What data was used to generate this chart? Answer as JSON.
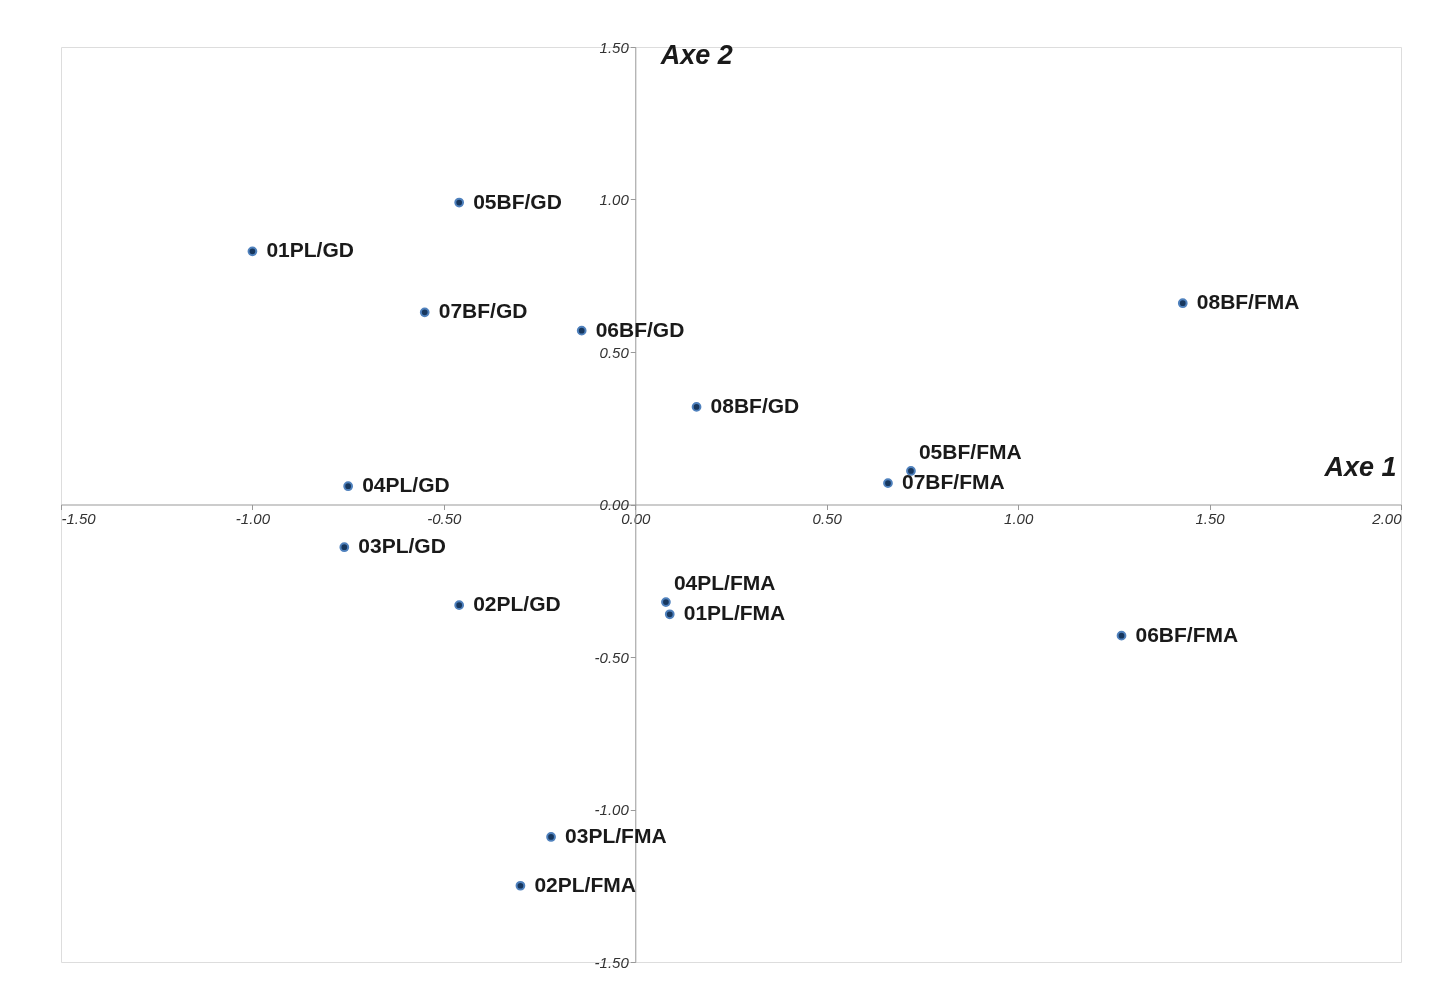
{
  "chart_data": {
    "type": "scatter",
    "xlabel": "Axe 1",
    "ylabel": "Axe 2",
    "xlim": [
      -1.5,
      2.0
    ],
    "ylim": [
      -1.5,
      1.5
    ],
    "xticks": [
      {
        "value": -1.5,
        "label": "-1.50"
      },
      {
        "value": -1.0,
        "label": "-1.00"
      },
      {
        "value": -0.5,
        "label": "-0.50"
      },
      {
        "value": 0,
        "label": "0.00"
      },
      {
        "value": 0.5,
        "label": "0.50"
      },
      {
        "value": 1.0,
        "label": "1.00"
      },
      {
        "value": 1.5,
        "label": "1.50"
      },
      {
        "value": 2.0,
        "label": "2.00"
      }
    ],
    "yticks": [
      {
        "value": -1.5,
        "label": "-1.50"
      },
      {
        "value": -1.0,
        "label": "-1.00"
      },
      {
        "value": -0.5,
        "label": "-0.50"
      },
      {
        "value": 0,
        "label": "0.00"
      },
      {
        "value": 0.5,
        "label": "0.50"
      },
      {
        "value": 1.0,
        "label": "1.00"
      },
      {
        "value": 1.5,
        "label": "1.50"
      }
    ],
    "grid": false,
    "marker": "circle",
    "series": [
      {
        "color": "#17375e",
        "x": [
          -0.46,
          -1.0,
          -0.55,
          -0.14,
          0.16,
          -0.75,
          -0.76,
          -0.46,
          1.43,
          0.72,
          0.66,
          0.08,
          0.09,
          1.27,
          -0.22,
          -0.3
        ],
        "values": [
          0.99,
          0.83,
          0.63,
          0.57,
          0.32,
          0.06,
          -0.14,
          -0.33,
          0.66,
          0.11,
          0.07,
          -0.32,
          -0.36,
          -0.43,
          -1.09,
          -1.25
        ]
      }
    ],
    "annotations": [
      {
        "text": "05BF/GD",
        "x": -0.46,
        "y": 0.99
      },
      {
        "text": "01PL/GD",
        "x": -1.0,
        "y": 0.83
      },
      {
        "text": "07BF/GD",
        "x": -0.55,
        "y": 0.63
      },
      {
        "text": "06BF/GD",
        "x": -0.14,
        "y": 0.57
      },
      {
        "text": "08BF/GD",
        "x": 0.16,
        "y": 0.32
      },
      {
        "text": "04PL/GD",
        "x": -0.75,
        "y": 0.06
      },
      {
        "text": "03PL/GD",
        "x": -0.76,
        "y": -0.14
      },
      {
        "text": "02PL/GD",
        "x": -0.46,
        "y": -0.33
      },
      {
        "text": "08BF/FMA",
        "x": 1.43,
        "y": 0.66
      },
      {
        "text": "05BF/FMA",
        "x": 0.72,
        "y": 0.11
      },
      {
        "text": "07BF/FMA",
        "x": 0.66,
        "y": 0.07
      },
      {
        "text": "04PL/FMA",
        "x": 0.08,
        "y": -0.32
      },
      {
        "text": "01PL/FMA",
        "x": 0.09,
        "y": -0.36
      },
      {
        "text": "06BF/FMA",
        "x": 1.27,
        "y": -0.43
      },
      {
        "text": "03PL/FMA",
        "x": -0.22,
        "y": -1.09
      },
      {
        "text": "02PL/FMA",
        "x": -0.3,
        "y": -1.25
      }
    ]
  }
}
